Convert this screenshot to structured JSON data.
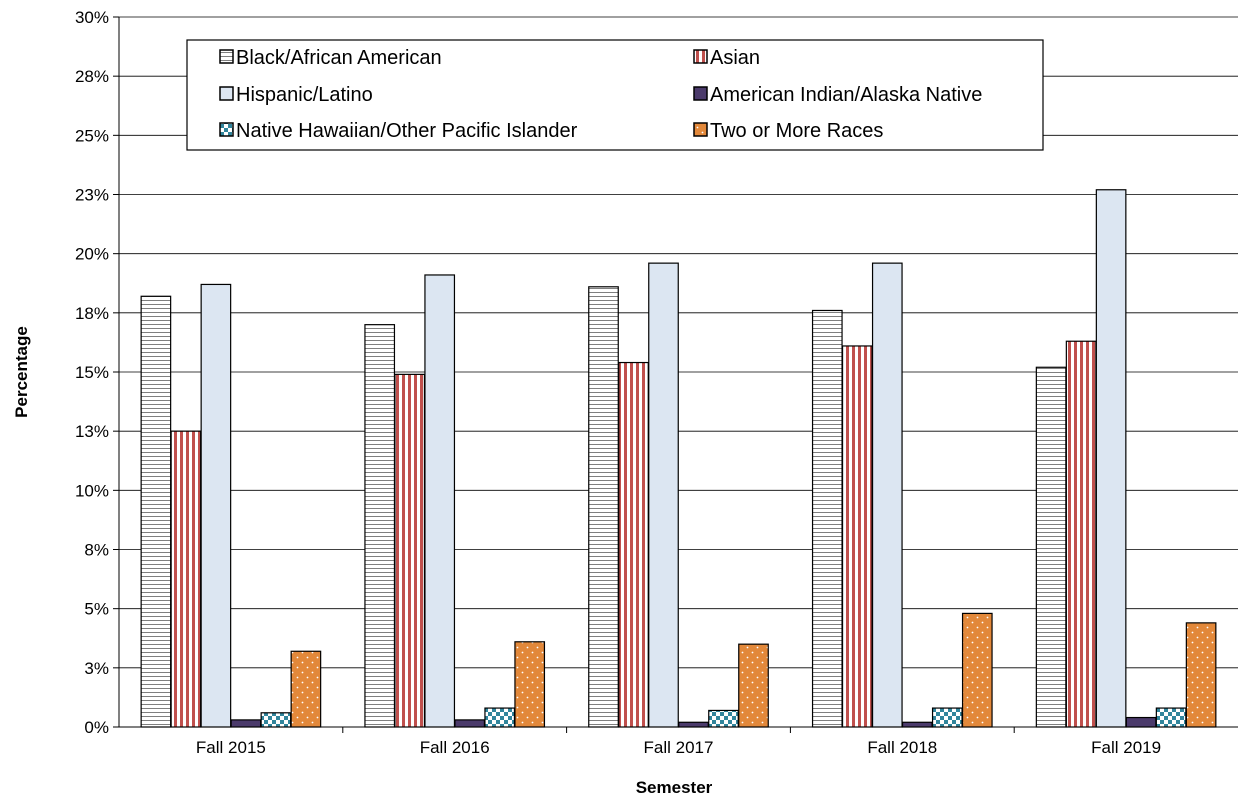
{
  "chart_data": {
    "type": "bar",
    "title": "",
    "xlabel": "Semester",
    "ylabel": "Percentage",
    "ylim": [
      0,
      30
    ],
    "yticks": [
      {
        "value": 0,
        "label": "0%"
      },
      {
        "value": 2.5,
        "label": "3%"
      },
      {
        "value": 5,
        "label": "5%"
      },
      {
        "value": 7.5,
        "label": "8%"
      },
      {
        "value": 10,
        "label": "10%"
      },
      {
        "value": 12.5,
        "label": "13%"
      },
      {
        "value": 15,
        "label": "15%"
      },
      {
        "value": 17.5,
        "label": "18%"
      },
      {
        "value": 20,
        "label": "20%"
      },
      {
        "value": 22.5,
        "label": "23%"
      },
      {
        "value": 25,
        "label": "25%"
      },
      {
        "value": 27.5,
        "label": "28%"
      },
      {
        "value": 30,
        "label": "30%"
      }
    ],
    "grid": true,
    "legend_position": "top",
    "categories": [
      "Fall 2015",
      "Fall 2016",
      "Fall 2017",
      "Fall 2018",
      "Fall 2019"
    ],
    "series": [
      {
        "name": "Black/African American",
        "values": [
          18.2,
          17.0,
          18.6,
          17.6,
          15.2
        ],
        "color": "#ffffff",
        "pattern": "hstripes"
      },
      {
        "name": "Asian",
        "values": [
          12.5,
          14.9,
          15.4,
          16.1,
          16.3
        ],
        "color": "#c0504d",
        "pattern": "vstripes"
      },
      {
        "name": "Hispanic/Latino",
        "values": [
          18.7,
          19.1,
          19.6,
          19.6,
          22.7
        ],
        "color": "#dce6f2",
        "pattern": "solid"
      },
      {
        "name": "American Indian/Alaska Native",
        "values": [
          0.3,
          0.3,
          0.2,
          0.2,
          0.4
        ],
        "color": "#4b3a6b",
        "pattern": "solid"
      },
      {
        "name": "Native Hawaiian/Other Pacific Islander",
        "values": [
          0.6,
          0.8,
          0.7,
          0.8,
          0.8
        ],
        "color": "#31859c",
        "pattern": "checker"
      },
      {
        "name": "Two or More Races",
        "values": [
          3.2,
          3.6,
          3.5,
          4.8,
          4.4
        ],
        "color": "#e2883a",
        "pattern": "dots"
      }
    ]
  }
}
